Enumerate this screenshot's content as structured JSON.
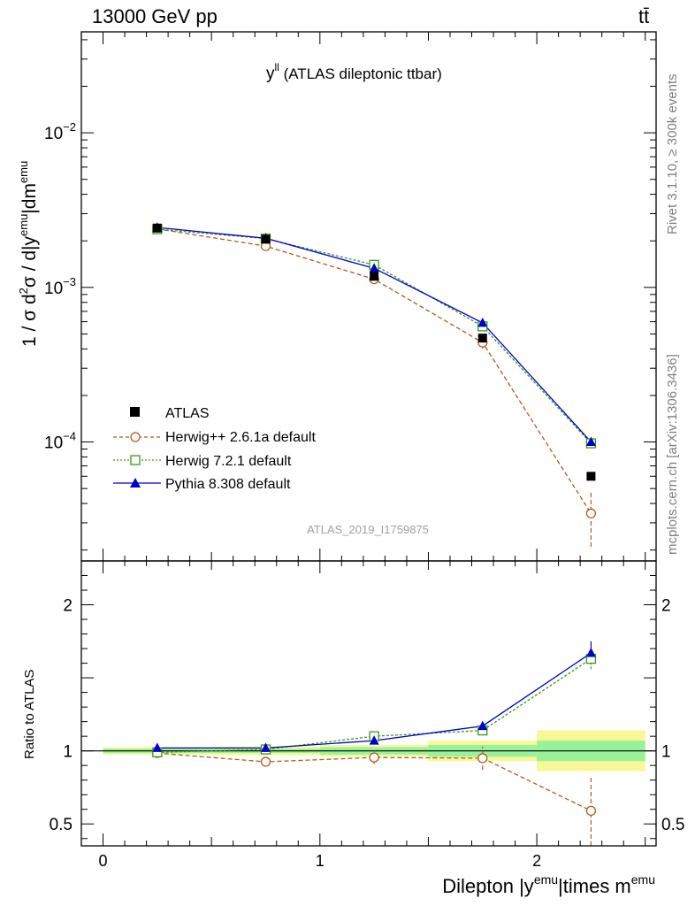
{
  "header": {
    "left": "13000 GeV pp",
    "right": "tt̄"
  },
  "side_labels": {
    "rivet": "Rivet 3.1.10, ≥ 300k events",
    "mcplots": "mcplots.cern.ch [arXiv:1306.3436]"
  },
  "main_title": {
    "var": "y",
    "sup": "ll",
    "desc": " (ATLAS dileptonic ttbar)"
  },
  "watermark": "ATLAS_2019_I1759875",
  "y_axis_main": {
    "p1": "1 / σ  d",
    "s1": "2",
    "p2": "σ / d|y",
    "s2": "emu",
    "p3": "|dm",
    "s3": "emu"
  },
  "y_axis_ratio": "Ratio to ATLAS",
  "x_axis": {
    "p1": "Dilepton |y",
    "s1": "emu",
    "p2": "|times m",
    "s2": "emu"
  },
  "legend": [
    {
      "label": "ATLAS"
    },
    {
      "label": "Herwig++ 2.6.1a default"
    },
    {
      "label": "Herwig 7.2.1 default"
    },
    {
      "label": "Pythia 8.308 default"
    }
  ],
  "colors": {
    "atlas": "#000000",
    "herwigpp": "#b35a1f",
    "herwig7": "#3a9a1a",
    "pythia": "#0000cc",
    "band_inner": "#99f299",
    "band_outer": "#f8f898"
  },
  "chart_data": {
    "type": "line",
    "xlim": [
      -0.1,
      2.55
    ],
    "main": {
      "yscale": "log",
      "ylim": [
        1.7e-05,
        0.045
      ],
      "major_ticks": [
        {
          "value": 0.0001,
          "mantissa": "10",
          "exponent": "−4"
        },
        {
          "value": 0.001,
          "mantissa": "10",
          "exponent": "−3"
        },
        {
          "value": 0.01,
          "mantissa": "10",
          "exponent": "−2"
        }
      ]
    },
    "ratio": {
      "ylim": [
        0.35,
        2.3
      ],
      "ticks": [
        {
          "value": 0.5,
          "label": "0.5"
        },
        {
          "value": 1,
          "label": "1"
        },
        {
          "value": 2,
          "label": "2"
        }
      ]
    },
    "x_ticks": [
      {
        "value": 0,
        "label": "0"
      },
      {
        "value": 1,
        "label": "1"
      },
      {
        "value": 2,
        "label": "2"
      }
    ],
    "bins": [
      [
        0,
        0.5
      ],
      [
        0.5,
        1.0
      ],
      [
        1.0,
        1.5
      ],
      [
        1.5,
        2.0
      ],
      [
        2.0,
        2.5
      ]
    ],
    "x": [
      0.25,
      0.75,
      1.25,
      1.75,
      2.25
    ],
    "ratio_bands": {
      "inner": [
        [
          0.985,
          1.015
        ],
        [
          0.985,
          1.015
        ],
        [
          0.975,
          1.025
        ],
        [
          0.96,
          1.04
        ],
        [
          0.93,
          1.07
        ]
      ],
      "outer": [
        [
          0.975,
          1.025
        ],
        [
          0.97,
          1.03
        ],
        [
          0.96,
          1.04
        ],
        [
          0.93,
          1.07
        ],
        [
          0.86,
          1.14
        ]
      ]
    },
    "series": [
      {
        "name": "ATLAS",
        "key": "atlas",
        "style": "data",
        "marker": "square-filled",
        "values": [
          0.00242,
          0.00205,
          0.00118,
          0.00047,
          6e-05
        ]
      },
      {
        "name": "Herwig++ 2.6.1a default",
        "key": "herwigpp",
        "style": "dashed",
        "marker": "circle-open",
        "values": [
          0.00239,
          0.00185,
          0.00113,
          0.00044,
          3.45e-05
        ],
        "err_low": [
          0.00237,
          0.00183,
          0.00107,
          0.0004,
          2.1e-05
        ],
        "err_high": [
          0.00241,
          0.00187,
          0.00119,
          0.00048,
          4.7e-05
        ],
        "ratio": [
          0.985,
          0.925,
          0.955,
          0.95,
          0.59
        ],
        "ratio_low": [
          0.975,
          0.905,
          0.91,
          0.87,
          0.35
        ],
        "ratio_high": [
          0.995,
          0.945,
          1.0,
          1.03,
          0.83
        ]
      },
      {
        "name": "Herwig 7.2.1 default",
        "key": "herwig7",
        "style": "dotted",
        "marker": "square-open",
        "values": [
          0.00238,
          0.00207,
          0.0014,
          0.00056,
          9.8e-05
        ],
        "err_low": [
          0.00236,
          0.00205,
          0.00137,
          0.00054,
          9.4e-05
        ],
        "err_high": [
          0.0024,
          0.00209,
          0.00143,
          0.00058,
          0.000102
        ],
        "ratio": [
          0.99,
          1.01,
          1.1,
          1.14,
          1.63
        ],
        "ratio_low": [
          0.985,
          1.0,
          1.085,
          1.12,
          1.56
        ],
        "ratio_high": [
          0.995,
          1.02,
          1.115,
          1.16,
          1.7
        ]
      },
      {
        "name": "Pythia 8.308 default",
        "key": "pythia",
        "style": "solid",
        "marker": "triangle-filled",
        "values": [
          0.00244,
          0.00208,
          0.00133,
          0.00059,
          0.0001
        ],
        "err_low": [
          0.00242,
          0.00206,
          0.0013,
          0.00057,
          9.5e-05
        ],
        "err_high": [
          0.00246,
          0.0021,
          0.00136,
          0.00061,
          0.000105
        ],
        "ratio": [
          1.02,
          1.02,
          1.07,
          1.17,
          1.67
        ],
        "ratio_low": [
          1.01,
          1.01,
          1.06,
          1.15,
          1.6
        ],
        "ratio_high": [
          1.03,
          1.03,
          1.08,
          1.2,
          1.75
        ]
      }
    ]
  }
}
